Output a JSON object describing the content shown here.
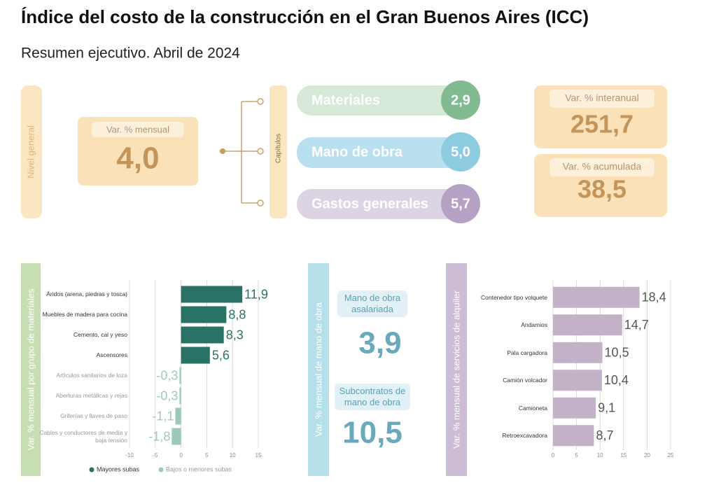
{
  "header": {
    "title": "Índice del costo de la construcción en el Gran Buenos Aires (ICC)",
    "subtitle": "Resumen ejecutivo. Abril de 2024"
  },
  "summary": {
    "general": {
      "tab": "Nivel general",
      "label": "Var. % mensual",
      "value": "4,0"
    },
    "chapters": {
      "tab": "Capítulos",
      "items": [
        {
          "name": "Materiales",
          "value": "2,9"
        },
        {
          "name": "Mano de obra",
          "value": "5,0"
        },
        {
          "name": "Gastos generales",
          "value": "5,7"
        }
      ]
    },
    "annual": {
      "label": "Var. % interanual",
      "value": "251,7"
    },
    "cumulative": {
      "label": "Var. % acumulada",
      "value": "38,5"
    }
  },
  "labor_panel": {
    "tab": "Var. % mensual de mano de obra",
    "items": [
      {
        "label": "Mano de obra asalariada",
        "value": "3,9"
      },
      {
        "label": "Subcontratos de mano de obra",
        "value": "10,5"
      }
    ]
  },
  "chart_data": [
    {
      "type": "bar",
      "orientation": "horizontal",
      "axis_title": "Var. % mensual por grupo de materiales",
      "categories": [
        "Áridos (arena, piedras y tosca)",
        "Muebles de madera para cocina",
        "Cemento, cal y yeso",
        "Ascensores",
        "Artículos sanitarios de loza",
        "Aberturas metálicas y rejas",
        "Griferías y llaves de paso",
        "Cables y conductores de media y baja tensión"
      ],
      "series": [
        {
          "name": "Mayores subas",
          "color": "#2b7266",
          "values": [
            11.9,
            8.8,
            8.3,
            5.6,
            null,
            null,
            null,
            null
          ],
          "value_labels": [
            "11,9",
            "8,8",
            "8,3",
            "5,6",
            null,
            null,
            null,
            null
          ]
        },
        {
          "name": "Bajos o menores subas",
          "color": "#9ccab8",
          "values": [
            null,
            null,
            null,
            null,
            -0.3,
            -0.3,
            -1.1,
            -1.8
          ],
          "value_labels": [
            null,
            null,
            null,
            null,
            "-0,3",
            "-0,3",
            "-1,1",
            "-1,8"
          ]
        }
      ],
      "xlim": [
        -10,
        15
      ],
      "xticks": [
        -10,
        -5,
        0,
        5,
        10,
        15
      ],
      "grid": true
    },
    {
      "type": "bar",
      "orientation": "horizontal",
      "axis_title": "Var. % mensual de servicios de alquiler",
      "categories": [
        "Contenedor tipo volquete",
        "Andamios",
        "Pala cargadora",
        "Camión volcador",
        "Camioneta",
        "Retroexcavadora"
      ],
      "values": [
        18.4,
        14.7,
        10.5,
        10.4,
        9.1,
        8.7
      ],
      "value_labels": [
        "18,4",
        "14,7",
        "10,5",
        "10,4",
        "9,1",
        "8,7"
      ],
      "color": "#c4b2c9",
      "xlim": [
        0,
        25
      ],
      "xticks": [
        0,
        5,
        10,
        15,
        20,
        25
      ],
      "grid": true
    }
  ]
}
